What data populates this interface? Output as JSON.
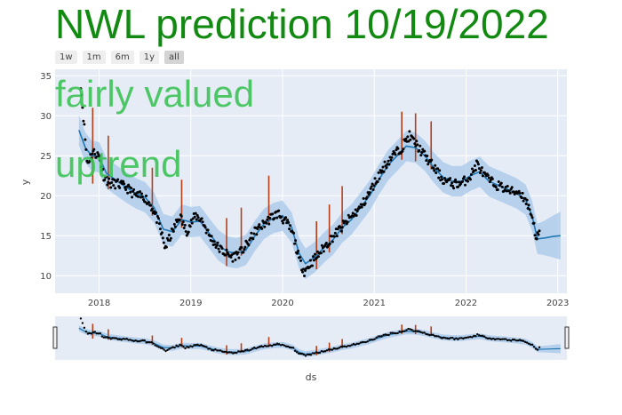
{
  "title": "NWL prediction 10/19/2022",
  "range_buttons": [
    {
      "label": "1w",
      "active": false
    },
    {
      "label": "1m",
      "active": false
    },
    {
      "label": "6m",
      "active": false
    },
    {
      "label": "1y",
      "active": false
    },
    {
      "label": "all",
      "active": true
    }
  ],
  "annotations": {
    "valuation": "fairly valued",
    "trend": "uptrend"
  },
  "colors": {
    "title": "#128a12",
    "annotation": "#3cc256",
    "actual": "#000000",
    "forecast": "#1f77b4",
    "band": "#a7c8ea",
    "event": "#b3401a",
    "plot_bg": "#e5ecf6"
  },
  "chart_data": {
    "type": "line",
    "xlabel": "ds",
    "ylabel": "y",
    "xlim": [
      2017.52,
      2023.1
    ],
    "ylim": [
      7.8,
      35.8
    ],
    "x_ticks": [
      2018,
      2019,
      2020,
      2021,
      2022,
      2023
    ],
    "x_tick_labels": [
      "2018",
      "2019",
      "2020",
      "2021",
      "2022",
      "2023"
    ],
    "y_ticks": [
      10,
      15,
      20,
      25,
      30,
      35
    ],
    "y_tick_labels": [
      "10",
      "15",
      "20",
      "25",
      "30",
      "35"
    ],
    "grid": true,
    "series": [
      {
        "role": "actual",
        "points": [
          [
            2017.8,
            34.0
          ],
          [
            2017.87,
            24.0
          ],
          [
            2017.93,
            25.5
          ],
          [
            2018.0,
            25.0
          ],
          [
            2018.05,
            22.5
          ],
          [
            2018.12,
            21.5
          ],
          [
            2018.2,
            21.5
          ],
          [
            2018.3,
            21.0
          ],
          [
            2018.4,
            20.0
          ],
          [
            2018.5,
            19.8
          ],
          [
            2018.58,
            18.5
          ],
          [
            2018.65,
            16.5
          ],
          [
            2018.72,
            13.5
          ],
          [
            2018.8,
            15.5
          ],
          [
            2018.88,
            17.5
          ],
          [
            2018.95,
            15.5
          ],
          [
            2019.05,
            17.5
          ],
          [
            2019.12,
            17.0
          ],
          [
            2019.2,
            15.0
          ],
          [
            2019.3,
            13.5
          ],
          [
            2019.38,
            12.8
          ],
          [
            2019.45,
            12.3
          ],
          [
            2019.55,
            13.0
          ],
          [
            2019.62,
            14.0
          ],
          [
            2019.7,
            15.5
          ],
          [
            2019.8,
            16.5
          ],
          [
            2019.88,
            17.3
          ],
          [
            2019.95,
            17.8
          ],
          [
            2020.05,
            16.5
          ],
          [
            2020.12,
            15.0
          ],
          [
            2020.18,
            12.0
          ],
          [
            2020.24,
            10.5
          ],
          [
            2020.3,
            11.5
          ],
          [
            2020.38,
            12.5
          ],
          [
            2020.45,
            13.5
          ],
          [
            2020.52,
            14.5
          ],
          [
            2020.6,
            15.5
          ],
          [
            2020.68,
            16.5
          ],
          [
            2020.76,
            17.5
          ],
          [
            2020.85,
            18.5
          ],
          [
            2020.93,
            20.0
          ],
          [
            2021.0,
            21.5
          ],
          [
            2021.1,
            23.5
          ],
          [
            2021.2,
            25.0
          ],
          [
            2021.3,
            26.0
          ],
          [
            2021.38,
            27.5
          ],
          [
            2021.45,
            26.5
          ],
          [
            2021.55,
            25.0
          ],
          [
            2021.65,
            23.5
          ],
          [
            2021.75,
            22.0
          ],
          [
            2021.85,
            21.5
          ],
          [
            2021.95,
            21.5
          ],
          [
            2022.05,
            22.5
          ],
          [
            2022.12,
            24.0
          ],
          [
            2022.2,
            22.5
          ],
          [
            2022.3,
            21.5
          ],
          [
            2022.4,
            21.0
          ],
          [
            2022.5,
            20.5
          ],
          [
            2022.58,
            20.5
          ],
          [
            2022.65,
            19.5
          ],
          [
            2022.72,
            17.5
          ],
          [
            2022.77,
            14.5
          ],
          [
            2022.8,
            15.5
          ]
        ]
      },
      {
        "role": "forecast",
        "points": [
          [
            2017.78,
            28.2
          ],
          [
            2017.85,
            26.0
          ],
          [
            2017.92,
            25.0
          ],
          [
            2018.0,
            24.8
          ],
          [
            2018.08,
            22.8
          ],
          [
            2018.2,
            21.8
          ],
          [
            2018.3,
            21.0
          ],
          [
            2018.4,
            20.3
          ],
          [
            2018.5,
            19.8
          ],
          [
            2018.6,
            18.5
          ],
          [
            2018.7,
            15.8
          ],
          [
            2018.8,
            15.5
          ],
          [
            2018.9,
            17.0
          ],
          [
            2019.0,
            16.7
          ],
          [
            2019.1,
            16.8
          ],
          [
            2019.2,
            15.3
          ],
          [
            2019.3,
            13.8
          ],
          [
            2019.4,
            13.0
          ],
          [
            2019.5,
            12.8
          ],
          [
            2019.6,
            13.2
          ],
          [
            2019.7,
            15.0
          ],
          [
            2019.8,
            16.5
          ],
          [
            2019.9,
            17.2
          ],
          [
            2020.0,
            17.5
          ],
          [
            2020.1,
            16.0
          ],
          [
            2020.18,
            12.8
          ],
          [
            2020.25,
            11.5
          ],
          [
            2020.35,
            12.3
          ],
          [
            2020.45,
            13.5
          ],
          [
            2020.55,
            14.5
          ],
          [
            2020.65,
            16.0
          ],
          [
            2020.75,
            17.0
          ],
          [
            2020.85,
            18.5
          ],
          [
            2020.95,
            20.0
          ],
          [
            2021.05,
            22.0
          ],
          [
            2021.15,
            23.8
          ],
          [
            2021.25,
            25.0
          ],
          [
            2021.35,
            26.2
          ],
          [
            2021.45,
            26.0
          ],
          [
            2021.55,
            25.0
          ],
          [
            2021.65,
            23.5
          ],
          [
            2021.75,
            22.3
          ],
          [
            2021.85,
            21.8
          ],
          [
            2021.95,
            21.8
          ],
          [
            2022.05,
            22.5
          ],
          [
            2022.15,
            23.0
          ],
          [
            2022.25,
            21.8
          ],
          [
            2022.35,
            21.3
          ],
          [
            2022.45,
            20.8
          ],
          [
            2022.55,
            20.3
          ],
          [
            2022.65,
            19.5
          ],
          [
            2022.72,
            17.5
          ],
          [
            2022.76,
            15.5
          ],
          [
            2022.78,
            14.6
          ],
          [
            2022.85,
            14.7
          ],
          [
            2022.95,
            14.9
          ],
          [
            2023.03,
            15.0
          ]
        ]
      }
    ],
    "band_halfwidth": {
      "history": 1.9,
      "future_start": 1.9,
      "future_end": 3.0
    },
    "events": [
      {
        "x": 2017.93,
        "low": 21.5,
        "high": 31.0
      },
      {
        "x": 2018.1,
        "low": 20.8,
        "high": 27.5
      },
      {
        "x": 2018.58,
        "low": 17.5,
        "high": 23.5
      },
      {
        "x": 2018.9,
        "low": 16.0,
        "high": 22.0
      },
      {
        "x": 2019.39,
        "low": 11.2,
        "high": 17.2
      },
      {
        "x": 2019.55,
        "low": 12.5,
        "high": 18.5
      },
      {
        "x": 2019.85,
        "low": 16.5,
        "high": 22.5
      },
      {
        "x": 2020.37,
        "low": 10.8,
        "high": 16.8
      },
      {
        "x": 2020.51,
        "low": 12.9,
        "high": 18.9
      },
      {
        "x": 2020.65,
        "low": 15.2,
        "high": 21.2
      },
      {
        "x": 2021.3,
        "low": 24.5,
        "high": 30.5
      },
      {
        "x": 2021.45,
        "low": 24.3,
        "high": 30.3
      },
      {
        "x": 2021.62,
        "low": 23.3,
        "high": 29.3
      }
    ]
  }
}
